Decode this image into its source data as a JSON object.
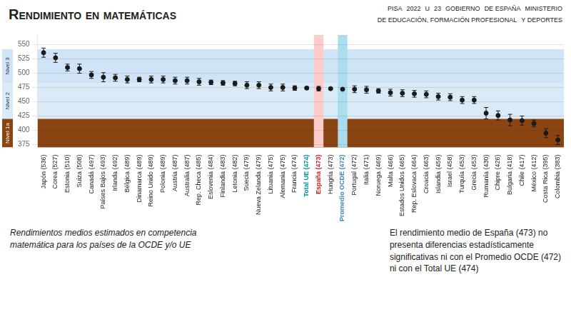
{
  "chart_data": {
    "type": "scatter",
    "title": "Rendimiento en matemáticas",
    "categories": [
      "Japón (536)",
      "Corea (527)",
      "Estonia (510)",
      "Suiza (508)",
      "Canadá (497)",
      "Países Bajos (493)",
      "Irlanda (492)",
      "Bélgica (489)",
      "Dinamarca (489)",
      "Reino Unido (489)",
      "Polonia (489)",
      "Austria (487)",
      "Australia (487)",
      "Rep. Checa (485)",
      "Eslovenia (484)",
      "Finlandia (483)",
      "Letonia (482)",
      "Suecia (479)",
      "Nueva Zelanda (479)",
      "Lituania (475)",
      "Alemania (475)",
      "Francia (474)",
      "Total UE (474)",
      "España (473)",
      "Hungría (473)",
      "Promedio OCDE (472)",
      "Portugal (472)",
      "Italia (471)",
      "Noruega (469)",
      "Malta (466)",
      "Estados Unidos (465)",
      "Rep. Eslovaca (464)",
      "Croacia (463)",
      "Islandia (459)",
      "Israel (458)",
      "Turquía (453)",
      "Grecia (453)",
      "Rumanía (430)",
      "Chipre (426)",
      "Bulgaria (418)",
      "Chile (417)",
      "México (412)",
      "Costa Rica (395)",
      "Colombia (383)"
    ],
    "values": [
      536,
      527,
      510,
      508,
      497,
      493,
      492,
      489,
      489,
      489,
      489,
      487,
      487,
      485,
      484,
      483,
      482,
      479,
      479,
      475,
      475,
      474,
      474,
      473,
      473,
      472,
      472,
      471,
      469,
      466,
      465,
      464,
      463,
      459,
      458,
      453,
      453,
      430,
      426,
      418,
      417,
      412,
      395,
      383
    ],
    "errors": [
      8,
      8,
      6,
      8,
      6,
      8,
      6,
      6,
      4,
      6,
      6,
      6,
      6,
      6,
      4,
      4,
      4,
      6,
      6,
      6,
      6,
      4,
      2,
      4,
      2,
      2,
      6,
      6,
      4,
      6,
      6,
      6,
      6,
      6,
      6,
      6,
      6,
      10,
      8,
      10,
      8,
      6,
      8,
      8
    ],
    "color": "#1a1a1a",
    "ylim": [
      370,
      567
    ],
    "yticks": [
      375,
      400,
      425,
      450,
      475,
      500,
      525,
      550
    ],
    "grid": "y",
    "legend": "none",
    "bands": [
      {
        "label": "Nivel 3",
        "range": [
          483,
          542
        ],
        "color": "#d0e4f7"
      },
      {
        "label": "Nivel 2",
        "range": [
          420,
          483
        ],
        "color": "#daeaf7"
      },
      {
        "label": "Nivel 1a",
        "range": [
          370,
          420
        ],
        "color": "#8B4513"
      }
    ],
    "highlights": [
      {
        "category": "España (473)",
        "color": "#cc2222",
        "band_color": "#ffcccc"
      },
      {
        "category": "Total UE (474)",
        "color": "#009999"
      },
      {
        "category": "Promedio OCDE (472)",
        "color": "#4488bb",
        "band_color": "#aaddee"
      }
    ],
    "annotations": [
      "Rendimientos medios estimados en competencia\nmatemática para los países de la OCDE y/o UE",
      "El rendimiento medio de España (473) no\npresenta diferencias estadísticamente\nsignificativas ni con el Promedio OCDE (472)\nni con el Total UE (474)",
      "PISA",
      "2022",
      "U",
      "23",
      "GOBIERNO",
      "DE ESPAÑA",
      "MINISTERIO",
      "DE EDUCACIÓN, FORMACIÓN PROFESIONAL",
      "Y DEPORTES"
    ]
  }
}
